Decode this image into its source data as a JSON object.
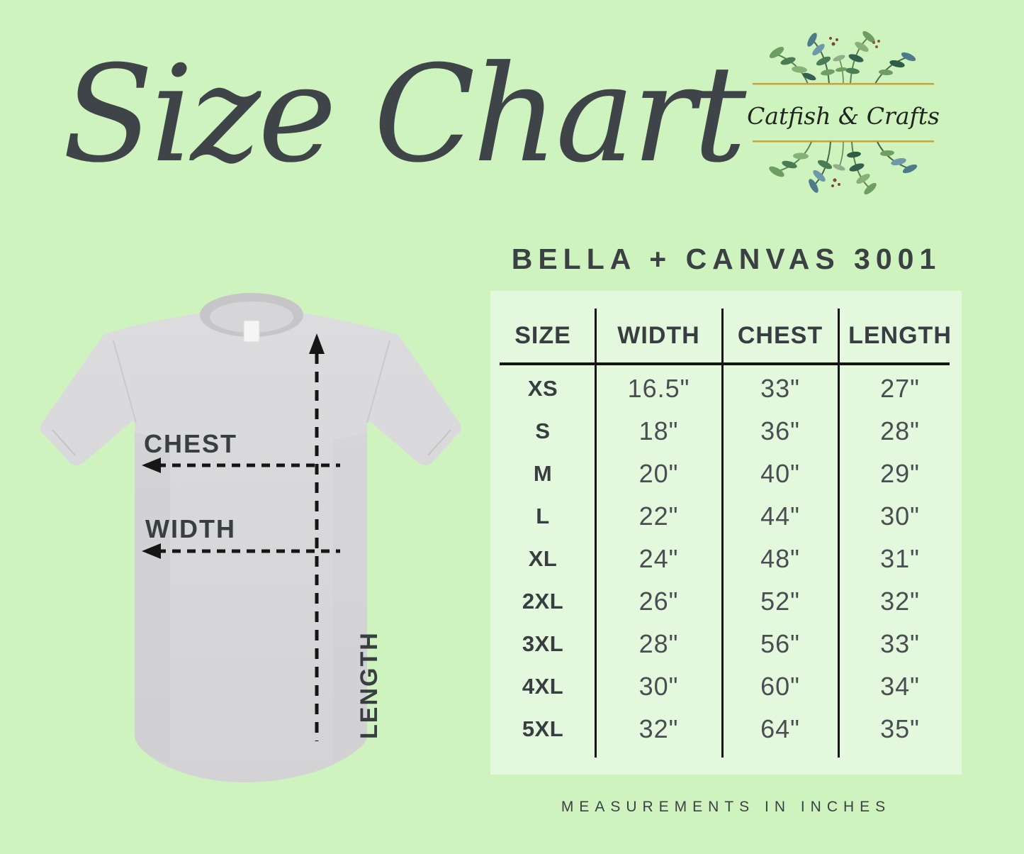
{
  "page": {
    "background_color": "#cff3bf",
    "title_script": "Size Chart",
    "product_line": "BELLA + CANVAS 3001",
    "footer_note": "MEASUREMENTS IN INCHES"
  },
  "logo": {
    "brand_name": "Catfish & Crafts",
    "accent_gold": "#c9a23c"
  },
  "shirt_diagram": {
    "labels": {
      "chest": "CHEST",
      "width": "WIDTH",
      "length": "LENGTH"
    },
    "shirt_color": "#d8d8da",
    "arrow_color": "#161616"
  },
  "colors": {
    "panel_background": "#e4f8dd",
    "text_dark": "#3e4347",
    "table_line": "#161616"
  },
  "chart_data": {
    "type": "table",
    "title": "Size Chart",
    "subtitle": "BELLA + CANVAS 3001",
    "columns": [
      "SIZE",
      "WIDTH",
      "CHEST",
      "LENGTH"
    ],
    "rows": [
      [
        "XS",
        "16.5\"",
        "33\"",
        "27\""
      ],
      [
        "S",
        "18\"",
        "36\"",
        "28\""
      ],
      [
        "M",
        "20\"",
        "40\"",
        "29\""
      ],
      [
        "L",
        "22\"",
        "44\"",
        "30\""
      ],
      [
        "XL",
        "24\"",
        "48\"",
        "31\""
      ],
      [
        "2XL",
        "26\"",
        "52\"",
        "32\""
      ],
      [
        "3XL",
        "28\"",
        "56\"",
        "33\""
      ],
      [
        "4XL",
        "30\"",
        "60\"",
        "34\""
      ],
      [
        "5XL",
        "32\"",
        "64\"",
        "35\""
      ]
    ],
    "units": "inches",
    "note": "MEASUREMENTS IN INCHES"
  }
}
